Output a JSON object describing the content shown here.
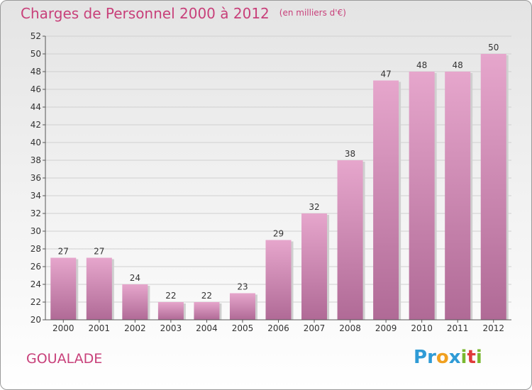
{
  "header": {
    "title": "Charges de Personnel 2000 à 2012",
    "subtitle": "(en milliers d'€)"
  },
  "footer": {
    "city": "GOUALADE",
    "logo_letters": [
      "P",
      "r",
      "o",
      "x",
      "i",
      "t",
      "i"
    ],
    "logo_colors": [
      "#2f9bd6",
      "#2f9bd6",
      "#f0a020",
      "#2f9bd6",
      "#7ab830",
      "#e03a3a",
      "#7ab830"
    ]
  },
  "colors": {
    "bar_top": "#e6a6cc",
    "bar_bottom": "#b06a96",
    "title": "#c8407a",
    "grid": "#d0d0d0",
    "axis_text": "#333333"
  },
  "chart_data": {
    "type": "bar",
    "categories": [
      "2000",
      "2001",
      "2002",
      "2003",
      "2004",
      "2005",
      "2006",
      "2007",
      "2008",
      "2009",
      "2010",
      "2011",
      "2012"
    ],
    "values": [
      27,
      27,
      24,
      22,
      22,
      23,
      29,
      32,
      38,
      47,
      48,
      48,
      50
    ],
    "ylim": [
      20,
      52
    ],
    "yticks": [
      20,
      22,
      24,
      26,
      28,
      30,
      32,
      34,
      36,
      38,
      40,
      42,
      44,
      46,
      48,
      50,
      52
    ],
    "grid": true
  }
}
